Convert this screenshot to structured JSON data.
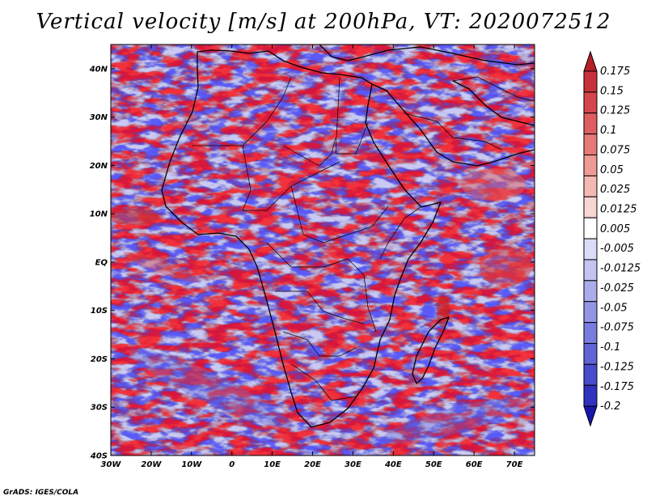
{
  "title": "Vertical velocity [m/s] at 200hPa, VT: 2020072512",
  "credit": "GrADS: IGES/COLA",
  "map": {
    "lon_range": [
      -30,
      75
    ],
    "lat_range": [
      -40,
      45
    ],
    "lat_ticks": [
      "40N",
      "30N",
      "20N",
      "10N",
      "EQ",
      "10S",
      "20S",
      "30S",
      "40S"
    ],
    "lon_ticks": [
      "30W",
      "20W",
      "10W",
      "0",
      "10E",
      "20E",
      "30E",
      "40E",
      "50E",
      "60E",
      "70E"
    ],
    "field_colors": {
      "neutral": "#ffffff",
      "positive": "#e4766e",
      "negative": "#8686ea"
    }
  },
  "colorbar": {
    "labels": [
      "0.175",
      "0.15",
      "0.125",
      "0.1",
      "0.075",
      "0.05",
      "0.025",
      "0.0125",
      "0.005",
      "-0.005",
      "-0.0125",
      "-0.025",
      "-0.05",
      "-0.075",
      "-0.1",
      "-0.125",
      "-0.175",
      "-0.2"
    ],
    "colors": [
      "#b81e28",
      "#c8323a",
      "#d5464c",
      "#df5e60",
      "#e77a78",
      "#ee9a95",
      "#f4b9b3",
      "#f8d6d1",
      "#ffffff",
      "#dcdcf8",
      "#c4c4f2",
      "#abacec",
      "#9294e6",
      "#797cdf",
      "#6064d6",
      "#474ccc",
      "#2e32bf",
      "#1616ac"
    ]
  }
}
